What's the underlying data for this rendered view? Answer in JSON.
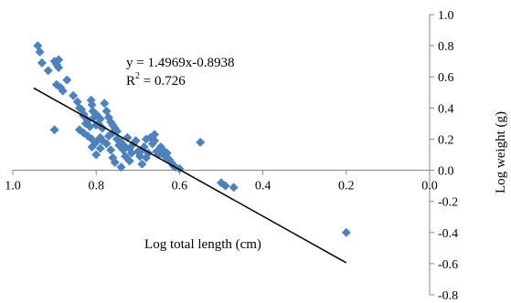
{
  "chart_data": {
    "type": "scatter",
    "title": "",
    "xlabel": "Log total length (cm)",
    "ylabel": "Log weight (g)",
    "x_reversed": true,
    "xlim": [
      0.0,
      1.0
    ],
    "ylim": [
      -0.8,
      1.0
    ],
    "x_ticks": [
      "1.0",
      "0.8",
      "0.6",
      "0.4",
      "0.2",
      "0.0"
    ],
    "y_ticks": [
      "1.0",
      "0.8",
      "0.6",
      "0.4",
      "0.2",
      "0.0",
      "-0.2",
      "-0.4",
      "-0.6",
      "-0.8"
    ],
    "y_axis_position": "right",
    "grid": false,
    "marker": "diamond",
    "marker_color": "#4f81bd",
    "trendline_color": "#000000",
    "equation": "y = 1.4969x-0.8938",
    "r2_prefix": "R",
    "r2_suffix": " = 0.726",
    "r2_exponent": "2",
    "trendline": {
      "slope": 1.4969,
      "intercept": -0.8938,
      "x_range": [
        0.2,
        0.95
      ]
    },
    "series": [
      {
        "points": [
          [
            0.94,
            0.8
          ],
          [
            0.935,
            0.76
          ],
          [
            0.93,
            0.69
          ],
          [
            0.915,
            0.64
          ],
          [
            0.9,
            0.7
          ],
          [
            0.895,
            0.68
          ],
          [
            0.89,
            0.71
          ],
          [
            0.89,
            0.66
          ],
          [
            0.895,
            0.55
          ],
          [
            0.885,
            0.53
          ],
          [
            0.88,
            0.51
          ],
          [
            0.87,
            0.58
          ],
          [
            0.9,
            0.26
          ],
          [
            0.855,
            0.48
          ],
          [
            0.845,
            0.44
          ],
          [
            0.84,
            0.4
          ],
          [
            0.835,
            0.39
          ],
          [
            0.83,
            0.36
          ],
          [
            0.83,
            0.35
          ],
          [
            0.825,
            0.3
          ],
          [
            0.82,
            0.32
          ],
          [
            0.815,
            0.28
          ],
          [
            0.812,
            0.45
          ],
          [
            0.81,
            0.42
          ],
          [
            0.808,
            0.38
          ],
          [
            0.805,
            0.34
          ],
          [
            0.8,
            0.36
          ],
          [
            0.8,
            0.29
          ],
          [
            0.795,
            0.3
          ],
          [
            0.79,
            0.33
          ],
          [
            0.785,
            0.27
          ],
          [
            0.78,
            0.43
          ],
          [
            0.775,
            0.38
          ],
          [
            0.77,
            0.34
          ],
          [
            0.765,
            0.31
          ],
          [
            0.76,
            0.29
          ],
          [
            0.755,
            0.27
          ],
          [
            0.75,
            0.25
          ],
          [
            0.84,
            0.26
          ],
          [
            0.83,
            0.24
          ],
          [
            0.82,
            0.22
          ],
          [
            0.81,
            0.2
          ],
          [
            0.8,
            0.18
          ],
          [
            0.79,
            0.21
          ],
          [
            0.785,
            0.19
          ],
          [
            0.775,
            0.17
          ],
          [
            0.77,
            0.22
          ],
          [
            0.765,
            0.13
          ],
          [
            0.76,
            0.08
          ],
          [
            0.755,
            0.05
          ],
          [
            0.75,
            0.2
          ],
          [
            0.745,
            0.16
          ],
          [
            0.74,
            0.18
          ],
          [
            0.735,
            0.13
          ],
          [
            0.73,
            0.15
          ],
          [
            0.725,
            0.21
          ],
          [
            0.72,
            0.14
          ],
          [
            0.715,
            0.11
          ],
          [
            0.71,
            0.17
          ],
          [
            0.705,
            0.19
          ],
          [
            0.7,
            0.12
          ],
          [
            0.695,
            0.09
          ],
          [
            0.69,
            0.13
          ],
          [
            0.685,
            0.15
          ],
          [
            0.68,
            0.08
          ],
          [
            0.675,
            0.11
          ],
          [
            0.67,
            0.21
          ],
          [
            0.665,
            0.17
          ],
          [
            0.66,
            0.19
          ],
          [
            0.655,
            0.12
          ],
          [
            0.65,
            0.1
          ],
          [
            0.645,
            0.15
          ],
          [
            0.64,
            0.13
          ],
          [
            0.635,
            0.09
          ],
          [
            0.63,
            0.11
          ],
          [
            0.625,
            0.07
          ],
          [
            0.62,
            0.05
          ],
          [
            0.615,
            0.03
          ],
          [
            0.61,
            0.02
          ],
          [
            0.74,
            0.02
          ],
          [
            0.69,
            0.04
          ],
          [
            0.72,
            0.06
          ],
          [
            0.55,
            0.18
          ],
          [
            0.5,
            -0.08
          ],
          [
            0.49,
            -0.1
          ],
          [
            0.47,
            -0.11
          ],
          [
            0.2,
            -0.4
          ],
          [
            0.8,
            0.1
          ],
          [
            0.81,
            0.15
          ],
          [
            0.79,
            0.14
          ],
          [
            0.73,
            0.09
          ],
          [
            0.76,
            0.24
          ],
          [
            0.68,
            0.2
          ],
          [
            0.66,
            0.23
          ],
          [
            0.6,
            0.01
          ]
        ]
      }
    ]
  }
}
